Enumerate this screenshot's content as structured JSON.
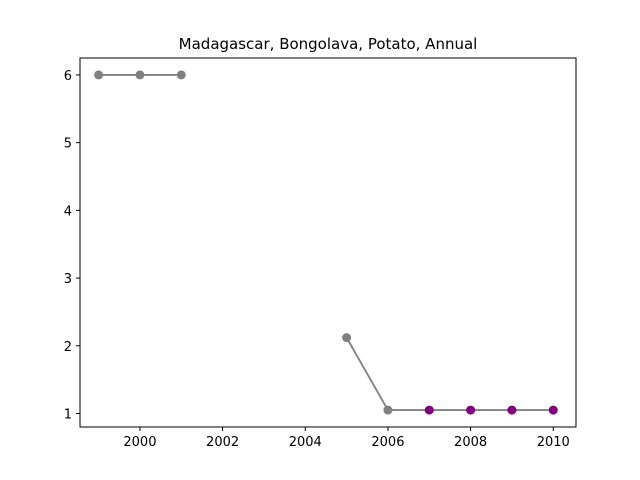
{
  "chart_data": {
    "type": "line",
    "title": "Madagascar, Bongolava, Potato, Annual",
    "xlabel": "",
    "ylabel": "",
    "xlim": [
      1998.55,
      2010.55
    ],
    "ylim": [
      0.8,
      6.25
    ],
    "grid": false,
    "x_ticks": [
      2000,
      2002,
      2004,
      2006,
      2008,
      2010
    ],
    "y_ticks": [
      1,
      2,
      3,
      4,
      5,
      6
    ],
    "line_color": "#808080",
    "point_colors": {
      "default": "#808080",
      "highlight": "#800080"
    },
    "segments": [
      {
        "points": [
          {
            "x": 1999,
            "y": 6.0,
            "color": "default"
          },
          {
            "x": 2000,
            "y": 6.0,
            "color": "default"
          },
          {
            "x": 2001,
            "y": 6.0,
            "color": "default"
          }
        ]
      },
      {
        "points": [
          {
            "x": 2005,
            "y": 2.12,
            "color": "default"
          },
          {
            "x": 2006,
            "y": 1.05,
            "color": "default"
          },
          {
            "x": 2007,
            "y": 1.05,
            "color": "highlight"
          },
          {
            "x": 2008,
            "y": 1.05,
            "color": "highlight"
          },
          {
            "x": 2009,
            "y": 1.05,
            "color": "highlight"
          },
          {
            "x": 2010,
            "y": 1.05,
            "color": "highlight"
          }
        ]
      }
    ]
  }
}
